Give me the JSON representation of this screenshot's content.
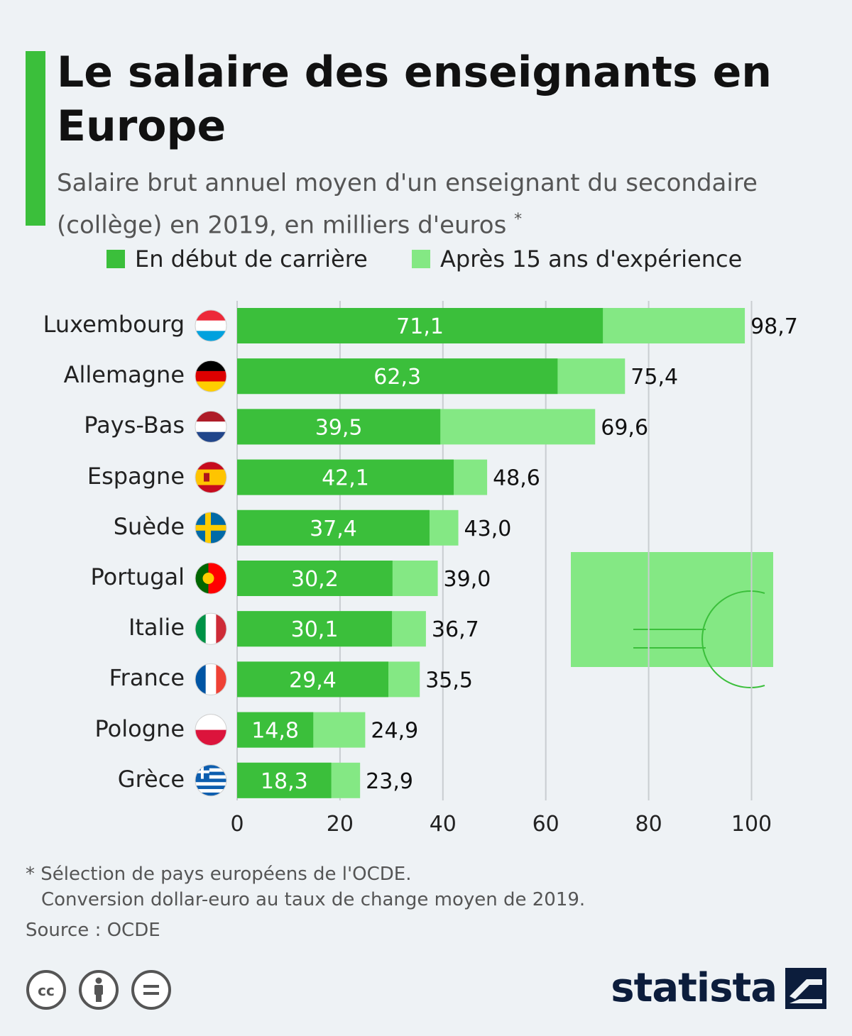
{
  "header": {
    "title": "Le salaire des enseignants en Europe",
    "subtitle": "Salaire brut annuel moyen d'un enseignant du secondaire (collège) en 2019, en milliers d'euros",
    "subtitle_mark": "*"
  },
  "legend": {
    "start": "En début de carrière",
    "experienced": "Après 15 ans d'expérience"
  },
  "colors": {
    "start": "#3bbf3b",
    "experienced": "#84e884",
    "accent": "#3bbf3b",
    "grid": "#c9cdd1",
    "brand": "#0c1d3c"
  },
  "chart_data": {
    "type": "bar",
    "orientation": "horizontal",
    "stacked": "overlay",
    "categories": [
      "Luxembourg",
      "Allemagne",
      "Pays-Bas",
      "Espagne",
      "Suède",
      "Portugal",
      "Italie",
      "France",
      "Pologne",
      "Grèce"
    ],
    "series": [
      {
        "name": "En début de carrière",
        "values": [
          71.1,
          62.3,
          39.5,
          42.1,
          37.4,
          30.2,
          30.1,
          29.4,
          14.8,
          18.3
        ]
      },
      {
        "name": "Après 15 ans d'expérience",
        "values": [
          98.7,
          75.4,
          69.6,
          48.6,
          43.0,
          39.0,
          36.7,
          35.5,
          24.9,
          23.9
        ]
      }
    ],
    "value_labels_start": [
      "71,1",
      "62,3",
      "39,5",
      "42,1",
      "37,4",
      "30,2",
      "30,1",
      "29,4",
      "14,8",
      "18,3"
    ],
    "value_labels_experienced": [
      "98,7",
      "75,4",
      "69,6",
      "48,6",
      "43,0",
      "39,0",
      "36,7",
      "35,5",
      "24,9",
      "23,9"
    ],
    "xlim": [
      0,
      100
    ],
    "xticks": [
      0,
      20,
      40,
      60,
      80,
      100
    ],
    "grid": true,
    "legend_position": "top"
  },
  "flags": [
    "luxembourg-flag-icon",
    "germany-flag-icon",
    "netherlands-flag-icon",
    "spain-flag-icon",
    "sweden-flag-icon",
    "portugal-flag-icon",
    "italy-flag-icon",
    "france-flag-icon",
    "poland-flag-icon",
    "greece-flag-icon"
  ],
  "footer": {
    "note_1": "* Sélection de pays européens de l'OCDE.",
    "note_2": "Conversion dollar-euro au taux de change moyen de 2019.",
    "source": "Source : OCDE",
    "license_icons": [
      "cc-icon",
      "attribution-icon",
      "no-derivatives-icon"
    ],
    "brand": "statista"
  }
}
